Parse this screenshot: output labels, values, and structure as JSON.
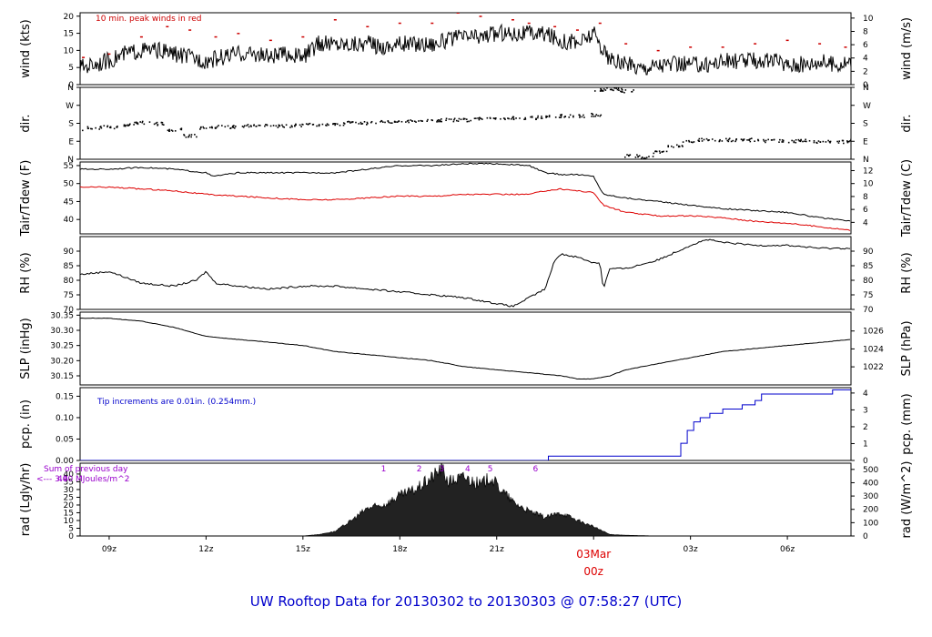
{
  "figure": {
    "title": "UW Rooftop Data for 20130302  to  20130303 @ 07:58:27  (UTC)"
  },
  "colors": {
    "main": "#000000",
    "peak": "#cc0000",
    "dewpoint": "#dd0000",
    "precip": "#0000cc",
    "annotation": "#9900cc",
    "title": "#0000cc"
  },
  "x_axis": {
    "start_hour": 8.1,
    "end_hour": 31.97,
    "tick_labels": [
      "09z",
      "12z",
      "15z",
      "18z",
      "21z",
      "03z",
      "06z"
    ],
    "tick_hours": [
      9,
      12,
      15,
      18,
      21,
      27,
      30
    ],
    "day_label": "03Mar",
    "day_hour_label": "00z",
    "day_hour": 24
  },
  "chart_data": [
    {
      "id": "wind",
      "type": "line",
      "ylabel_left": "wind (kts)",
      "ylabel_right": "wind (m/s)",
      "ylim": [
        0,
        21
      ],
      "left_ticks": [
        0,
        5,
        10,
        15,
        20
      ],
      "right_ticks": [
        0,
        2,
        4,
        6,
        8,
        10
      ],
      "right_factor": 0.5144,
      "annotation": "10 min. peak winds in red",
      "series": [
        {
          "role": "speed",
          "style": "line",
          "x": [
            8.1,
            8.5,
            9,
            9.5,
            10,
            10.5,
            11,
            11.5,
            12,
            12.5,
            13,
            13.5,
            14,
            14.5,
            15,
            15.5,
            16,
            16.5,
            17,
            17.5,
            18,
            18.5,
            19,
            19.5,
            20,
            20.5,
            21,
            21.5,
            22,
            22.5,
            23,
            23.5,
            24,
            24.5,
            25,
            25.5,
            26,
            26.5,
            27,
            27.5,
            28,
            28.5,
            29,
            29.5,
            30,
            30.5,
            31,
            31.5,
            31.97
          ],
          "values": [
            5,
            6,
            7,
            9,
            10,
            10,
            9,
            8,
            7,
            8,
            9,
            9,
            8,
            9,
            8,
            12,
            12,
            12,
            12,
            11,
            12,
            12,
            12,
            13,
            14,
            14,
            15,
            15,
            15,
            15,
            13,
            12,
            15,
            7,
            6,
            5,
            6,
            6,
            6,
            6,
            7,
            7,
            7,
            7,
            6,
            6,
            7,
            6,
            7
          ]
        },
        {
          "role": "peak",
          "style": "points",
          "x": [
            8.2,
            9,
            10,
            10.8,
            11.5,
            12.3,
            13,
            14,
            15,
            16,
            17,
            18,
            19,
            19.8,
            20.5,
            21.5,
            22,
            22.8,
            23.5,
            24.2,
            25,
            26,
            27,
            28,
            29,
            30,
            31,
            31.8
          ],
          "values": [
            8,
            9,
            14,
            17,
            16,
            14,
            15,
            13,
            14,
            19,
            17,
            18,
            18,
            21,
            20,
            19,
            18,
            17,
            16,
            18,
            12,
            10,
            11,
            11,
            12,
            13,
            12,
            11
          ]
        }
      ]
    },
    {
      "id": "dir",
      "type": "scatter",
      "ylabel_left": "dir.",
      "ylabel_right": "dir.",
      "ylim": [
        0,
        360
      ],
      "tick_values": [
        0,
        90,
        180,
        270,
        360
      ],
      "tick_labels": [
        "N",
        "E",
        "S",
        "W",
        "N"
      ],
      "x": [
        8.1,
        8.5,
        9,
        9.5,
        10,
        10.5,
        11,
        11.5,
        12,
        12.5,
        13,
        13.5,
        14,
        14.5,
        15,
        15.5,
        16,
        16.5,
        17,
        17.5,
        18,
        18.5,
        19,
        19.5,
        20,
        20.5,
        21,
        21.5,
        22,
        22.5,
        23,
        23.5,
        24,
        24.2,
        24.6,
        25,
        25.2,
        25.6,
        26,
        26.5,
        27,
        27.5,
        28,
        28.5,
        29,
        29.5,
        30,
        30.5,
        31,
        31.5,
        31.97
      ],
      "values": [
        150,
        160,
        165,
        175,
        185,
        180,
        150,
        120,
        160,
        165,
        165,
        170,
        170,
        170,
        175,
        175,
        180,
        185,
        185,
        190,
        195,
        195,
        195,
        200,
        200,
        205,
        205,
        210,
        210,
        215,
        220,
        220,
        225,
        350,
        355,
        345,
        20,
        10,
        40,
        70,
        90,
        100,
        100,
        100,
        100,
        95,
        95,
        95,
        90,
        90,
        95
      ]
    },
    {
      "id": "temp",
      "type": "line",
      "ylabel_left": "Tair/Tdew (F)",
      "ylabel_right": "Tair/Tdew (C)",
      "ylim": [
        36,
        56
      ],
      "left_ticks": [
        40,
        45,
        50,
        55
      ],
      "right_ticks": [
        4,
        6,
        8,
        10,
        12
      ],
      "series": [
        {
          "role": "air",
          "x": [
            8.1,
            9,
            10,
            11,
            12,
            12.2,
            13,
            14,
            15,
            16,
            17,
            18,
            19,
            20,
            21,
            22,
            22.5,
            23,
            23.5,
            24,
            24.3,
            25,
            26,
            27,
            28,
            29,
            30,
            31,
            31.97
          ],
          "values": [
            54,
            54,
            54.5,
            54,
            53,
            52,
            53,
            53,
            53,
            53,
            54,
            55,
            55,
            55.5,
            55.5,
            55,
            53,
            52.5,
            52.5,
            52,
            47,
            46,
            45,
            44,
            43,
            42.5,
            42,
            40.5,
            39.5
          ]
        },
        {
          "role": "dewpoint",
          "x": [
            8.1,
            9,
            10,
            11,
            12,
            13,
            14,
            15,
            16,
            17,
            18,
            19,
            20,
            21,
            22,
            22.5,
            23,
            23.5,
            24,
            24.3,
            25,
            26,
            27,
            28,
            29,
            30,
            31,
            31.97
          ],
          "values": [
            49,
            49,
            48.5,
            48,
            47,
            46.5,
            46,
            45.5,
            45.5,
            46,
            46.5,
            46.5,
            47,
            47,
            47,
            48,
            48.5,
            48,
            47.5,
            44,
            42,
            41,
            41,
            40.5,
            39.5,
            39,
            38,
            37
          ]
        }
      ]
    },
    {
      "id": "rh",
      "type": "line",
      "ylabel_left": "RH (%)",
      "ylabel_right": "RH (%)",
      "ylim": [
        70,
        95
      ],
      "left_ticks": [
        70,
        75,
        80,
        85,
        90
      ],
      "right_ticks": [
        70,
        75,
        80,
        85,
        90
      ],
      "x": [
        8.1,
        9,
        9.5,
        10,
        11,
        11.7,
        12,
        12.3,
        13,
        14,
        15,
        16,
        17,
        18,
        19,
        20,
        20.5,
        21,
        21.5,
        22,
        22.5,
        22.8,
        23,
        23.5,
        24,
        24.2,
        24.3,
        24.5,
        25,
        26,
        27,
        27.5,
        28,
        29,
        30,
        31,
        31.97
      ],
      "values": [
        82,
        83,
        81,
        79,
        78,
        80,
        83,
        79,
        78,
        77,
        78,
        78,
        77,
        76,
        75,
        74,
        73,
        72,
        71,
        74,
        77,
        87,
        89,
        88,
        86,
        86,
        77,
        84,
        84,
        87,
        92,
        94,
        93,
        92,
        92,
        91,
        91
      ]
    },
    {
      "id": "slp",
      "type": "line",
      "ylabel_left": "SLP (inHg)",
      "ylabel_right": "SLP (hPa)",
      "ylim": [
        30.12,
        30.36
      ],
      "left_ticks": [
        30.15,
        30.2,
        30.25,
        30.3,
        30.35
      ],
      "left_tick_labels": [
        "30.15",
        "30.20",
        "30.25",
        "30.30",
        "30.35"
      ],
      "right_ticks": [
        1022,
        1024,
        1026
      ],
      "x": [
        8.1,
        9,
        10,
        11,
        12,
        13,
        14,
        15,
        16,
        17,
        18,
        19,
        20,
        21,
        22,
        23,
        23.5,
        24,
        24.5,
        25,
        26,
        27,
        28,
        29,
        30,
        31,
        31.97
      ],
      "values": [
        30.34,
        30.34,
        30.33,
        30.31,
        30.28,
        30.27,
        30.26,
        30.25,
        30.23,
        30.22,
        30.21,
        30.2,
        30.18,
        30.17,
        30.16,
        30.15,
        30.14,
        30.14,
        30.15,
        30.17,
        30.19,
        30.21,
        30.23,
        30.24,
        30.25,
        30.26,
        30.27
      ]
    },
    {
      "id": "pcp",
      "type": "line",
      "ylabel_left": "pcp. (in)",
      "ylabel_right": "pcp. (mm)",
      "ylim": [
        0,
        0.17
      ],
      "left_ticks": [
        0,
        0.05,
        0.1,
        0.15
      ],
      "left_tick_labels": [
        "0.00",
        "0.05",
        "0.10",
        "0.15"
      ],
      "right_ticks": [
        0,
        1,
        2,
        3,
        4
      ],
      "annotation": "Tip increments are 0.01in. (0.254mm.)",
      "x": [
        8.1,
        22.5,
        22.6,
        26.5,
        26.7,
        26.9,
        27.1,
        27.3,
        27.6,
        28.0,
        28.6,
        29.0,
        29.2,
        31.2,
        31.4,
        31.97
      ],
      "values": [
        0,
        0,
        0.01,
        0.01,
        0.04,
        0.07,
        0.09,
        0.1,
        0.11,
        0.12,
        0.13,
        0.14,
        0.155,
        0.155,
        0.165,
        0.165
      ]
    },
    {
      "id": "rad",
      "type": "area",
      "ylabel_left": "rad (Lgly/hr)",
      "ylabel_right": "rad (W/m^2)",
      "ylim": [
        0,
        47
      ],
      "left_ticks": [
        0,
        5,
        10,
        15,
        20,
        25,
        30,
        35,
        40
      ],
      "right_ticks": [
        0,
        100,
        200,
        300,
        400,
        500
      ],
      "annotation_lines": [
        "Sum of previous day",
        "<--- 3.40 MJoules/m^2"
      ],
      "annotation_overlap": "40",
      "hour_markers": {
        "labels": [
          "1",
          "2",
          "3",
          "4",
          "5",
          "6"
        ],
        "x": [
          17.5,
          18.6,
          19.3,
          20.1,
          20.8,
          22.2
        ]
      },
      "x": [
        8.1,
        15,
        15.5,
        16,
        16.5,
        17,
        17.5,
        18,
        18.5,
        19,
        19.3,
        19.5,
        20,
        20.5,
        20.8,
        21,
        21.5,
        22,
        22.5,
        23,
        23.5,
        24,
        24.5,
        25,
        26,
        31.97
      ],
      "values": [
        0,
        0,
        1,
        3,
        10,
        18,
        20,
        26,
        30,
        38,
        44,
        35,
        38,
        33,
        38,
        33,
        22,
        16,
        12,
        15,
        10,
        6,
        1,
        0.5,
        0,
        0
      ]
    }
  ]
}
